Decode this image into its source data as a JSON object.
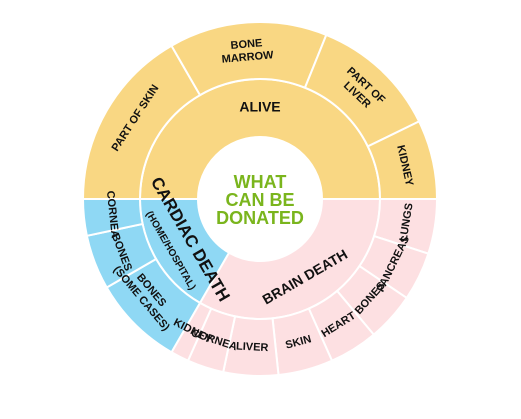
{
  "center": {
    "lines": [
      "WHAT",
      "CAN BE",
      "DONATED"
    ],
    "color": "#7ab51d"
  },
  "colors": {
    "alive": "#f9d783",
    "cardiac": "#8fd8f4",
    "brain": "#fde0e2",
    "stroke": "#ffffff"
  },
  "categories": [
    {
      "id": "alive",
      "label": "ALIVE",
      "items": [
        {
          "id": "part-of-skin",
          "lines": [
            "PART OF SKIN"
          ]
        },
        {
          "id": "bone-marrow",
          "lines": [
            "BONE",
            "MARROW"
          ]
        },
        {
          "id": "part-of-liver",
          "lines": [
            "PART OF",
            "LIVER"
          ]
        },
        {
          "id": "kidney-alive",
          "lines": [
            "KIDNEY"
          ]
        }
      ]
    },
    {
      "id": "brain",
      "label": "BRAIN DEATH",
      "items": [
        {
          "id": "lungs",
          "lines": [
            "LUNGS"
          ]
        },
        {
          "id": "pancreas",
          "lines": [
            "PANCREAS"
          ]
        },
        {
          "id": "bones-brain",
          "lines": [
            "BONES"
          ]
        },
        {
          "id": "heart",
          "lines": [
            "HEART"
          ]
        },
        {
          "id": "skin",
          "lines": [
            "SKIN"
          ]
        },
        {
          "id": "liver",
          "lines": [
            "LIVER"
          ]
        },
        {
          "id": "cornea-brain",
          "lines": [
            "CORNEA"
          ]
        },
        {
          "id": "kidney-brain",
          "lines": [
            "KIDNEY"
          ]
        }
      ]
    },
    {
      "id": "cardiac",
      "label": "CARDIAC DEATH",
      "sublabel": "(HOME/HOSPITAL)",
      "items": [
        {
          "id": "bones-some-cases",
          "lines": [
            "BONES",
            "(SOME CASES)"
          ]
        },
        {
          "id": "bones-cardiac",
          "lines": [
            "BONES"
          ]
        },
        {
          "id": "cornea-cardiac",
          "lines": [
            "CORNEA"
          ]
        }
      ]
    }
  ]
}
